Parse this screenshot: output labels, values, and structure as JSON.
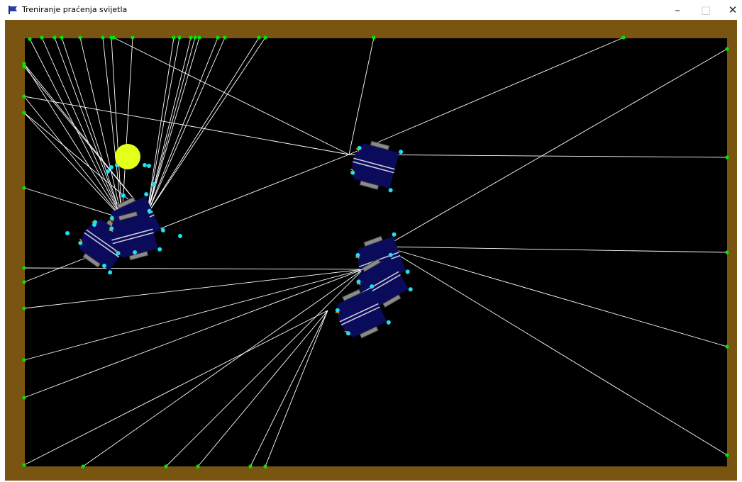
{
  "window": {
    "title": "Treniranje praćenja svijetla",
    "controls": {
      "minimize": "–",
      "maximize": "□",
      "close": "✕"
    },
    "app_icon": "blue-flag-icon"
  },
  "scene": {
    "colors": {
      "wall": "#7a5511",
      "floor": "#000000",
      "light": "#e4ff1a",
      "ray": "#ffffff",
      "hit_point": "#00e600",
      "robot_body": "#0b0b5c",
      "sensor": "#1ee0f0",
      "wheel": "#8a8a8a",
      "robot_label": "#d9a300"
    },
    "light_source": {
      "icon": "light-source-icon"
    }
  }
}
